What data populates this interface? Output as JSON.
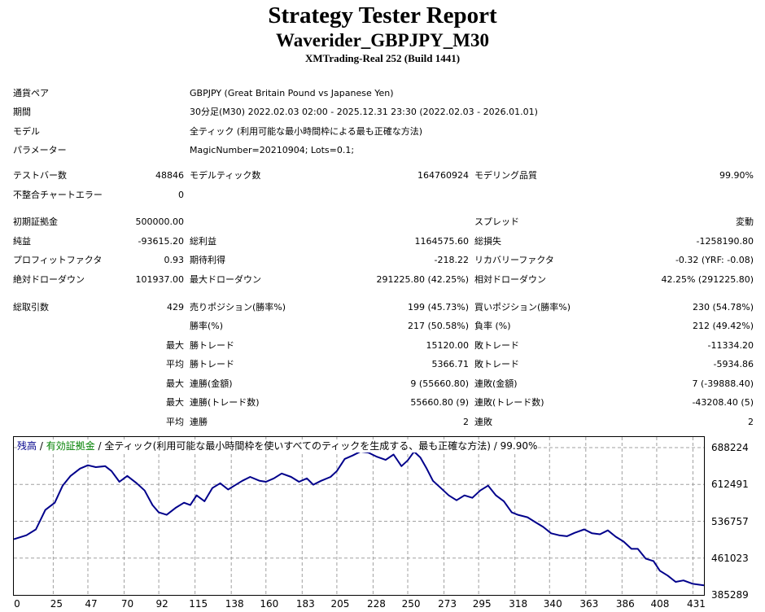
{
  "header": {
    "title": "Strategy Tester Report",
    "subtitle": "Waverider_GBPJPY_M30",
    "server": "XMTrading-Real 252 (Build 1441)"
  },
  "settings": [
    {
      "label": "通貨ペア",
      "value": "GBPJPY (Great Britain Pound vs Japanese Yen)"
    },
    {
      "label": "期間",
      "value": "30分足(M30) 2022.02.03 02:00 - 2025.12.31 23:30 (2022.02.03 - 2026.01.01)"
    },
    {
      "label": "モデル",
      "value": "全ティック (利用可能な最小時間枠による最も正確な方法)"
    },
    {
      "label": "パラメーター",
      "value": "MagicNumber=20210904; Lots=0.1;"
    }
  ],
  "quality": {
    "bars_label": "テストバー数",
    "bars_value": "48846",
    "ticks_label": "モデルティック数",
    "ticks_value": "164760924",
    "modeling_label": "モデリング品質",
    "modeling_value": "99.90%",
    "mismatch_label": "不整合チャートエラー",
    "mismatch_value": "0"
  },
  "results": {
    "deposit_label": "初期証拠金",
    "deposit_value": "500000.00",
    "spread_label": "スプレッド",
    "spread_value": "変動",
    "net_label": "純益",
    "net_value": "-93615.20",
    "gross_profit_label": "総利益",
    "gross_profit_value": "1164575.60",
    "gross_loss_label": "総損失",
    "gross_loss_value": "-1258190.80",
    "pf_label": "プロフィットファクタ",
    "pf_value": "0.93",
    "expected_label": "期待利得",
    "expected_value": "-218.22",
    "recovery_label": "リカバリーファクタ",
    "recovery_value": "-0.32 (YRF: -0.08)",
    "abs_dd_label": "絶対ドローダウン",
    "abs_dd_value": "101937.00",
    "max_dd_label": "最大ドローダウン",
    "max_dd_value": "291225.80 (42.25%)",
    "rel_dd_label": "相対ドローダウン",
    "rel_dd_value": "42.25% (291225.80)"
  },
  "trades": {
    "total_label": "総取引数",
    "total_value": "429",
    "short_label": "売りポジション(勝率%)",
    "short_value": "199 (45.73%)",
    "long_label": "買いポジション(勝率%)",
    "long_value": "230 (54.78%)",
    "win_label": "勝率(%)",
    "win_value": "217 (50.58%)",
    "loss_label": "負率 (%)",
    "loss_value": "212 (49.42%)",
    "max_word": "最大",
    "avg_word": "平均",
    "largest_win_label": "勝トレード",
    "largest_win_value": "15120.00",
    "largest_loss_label": "敗トレード",
    "largest_loss_value": "-11334.20",
    "avg_win_label": "勝トレード",
    "avg_win_value": "5366.71",
    "avg_loss_label": "敗トレード",
    "avg_loss_value": "-5934.86",
    "max_consec_wins_label": "連勝(金額)",
    "max_consec_wins_value": "9 (55660.80)",
    "max_consec_losses_label": "連敗(金額)",
    "max_consec_losses_value": "7 (-39888.40)",
    "max_consec_profit_label": "連勝(トレード数)",
    "max_consec_profit_value": "55660.80 (9)",
    "max_consec_loss_label": "連敗(トレード数)",
    "max_consec_loss_value": "-43208.40 (5)",
    "avg_consec_wins_label": "連勝",
    "avg_consec_wins_value": "2",
    "avg_consec_losses_label": "連敗",
    "avg_consec_losses_value": "2"
  },
  "legend": {
    "balance": "残高",
    "sep1": " / ",
    "equity": "有効証拠金",
    "sep2": " / ",
    "model": "全ティック(利用可能な最小時間枠を使いすべてのティックを生成する、最も正確な方法) / 99.90%"
  },
  "colors": {
    "balance": "#00008b",
    "equity": "#008000",
    "grid": "#a0a0a0"
  },
  "chart_data": {
    "type": "line",
    "xlabel": "",
    "ylabel": "",
    "grid": true,
    "ylim": [
      385289,
      710000
    ],
    "xlim": [
      0,
      438
    ],
    "x_ticks": [
      "0",
      "25",
      "47",
      "70",
      "92",
      "115",
      "138",
      "160",
      "183",
      "205",
      "228",
      "250",
      "273",
      "295",
      "318",
      "340",
      "363",
      "386",
      "408",
      "431"
    ],
    "y_ticks": [
      "688224",
      "612491",
      "536757",
      "461023",
      "385289"
    ],
    "series": [
      {
        "x": [
          0,
          8,
          14,
          20,
          26,
          31,
          36,
          42,
          47,
          52,
          58,
          62,
          67,
          72,
          78,
          83,
          88,
          92,
          97,
          103,
          108,
          112,
          116,
          121,
          126,
          131,
          136,
          140,
          145,
          150,
          156,
          160,
          165,
          170,
          176,
          181,
          186,
          190,
          195,
          201,
          205,
          210,
          215,
          220,
          225,
          230,
          236,
          241,
          246,
          250,
          254,
          258,
          262,
          266,
          271,
          276,
          281,
          286,
          291,
          296,
          301,
          306,
          311,
          316,
          320,
          326,
          331,
          336,
          341,
          346,
          351,
          356,
          362,
          367,
          372,
          377,
          382,
          387,
          392,
          396,
          401,
          406,
          410,
          415,
          420,
          425,
          431,
          438
        ],
        "values": [
          500000,
          508000,
          520000,
          560000,
          575000,
          610000,
          630000,
          645000,
          652000,
          648000,
          650000,
          640000,
          618000,
          630000,
          615000,
          600000,
          570000,
          555000,
          550000,
          565000,
          575000,
          570000,
          590000,
          578000,
          605000,
          615000,
          602000,
          610000,
          620000,
          628000,
          620000,
          618000,
          625000,
          635000,
          628000,
          618000,
          625000,
          612000,
          620000,
          628000,
          640000,
          665000,
          672000,
          680000,
          678000,
          670000,
          663000,
          674000,
          650000,
          662000,
          680000,
          668000,
          645000,
          620000,
          605000,
          590000,
          580000,
          590000,
          585000,
          600000,
          610000,
          590000,
          578000,
          555000,
          550000,
          545000,
          535000,
          525000,
          512000,
          508000,
          506000,
          513000,
          520000,
          512000,
          510000,
          518000,
          505000,
          495000,
          480000,
          480000,
          460000,
          455000,
          435000,
          425000,
          412000,
          415000,
          408000,
          405000
        ]
      }
    ]
  }
}
